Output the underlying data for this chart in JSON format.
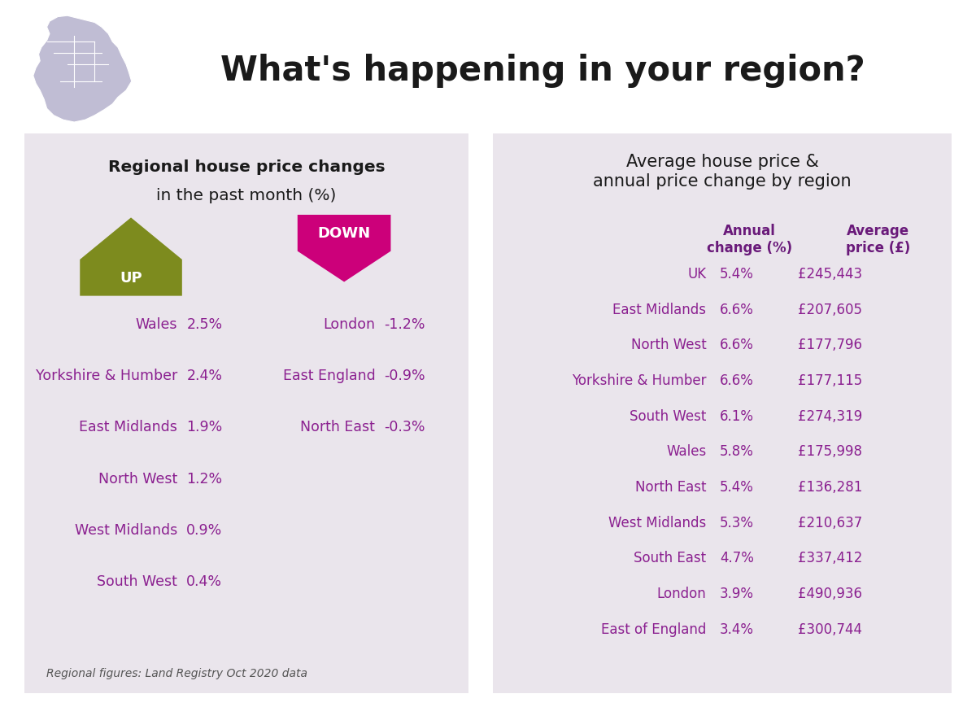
{
  "title": "What's happening in your region?",
  "title_color": "#1a1a1a",
  "bg_color": "#ffffff",
  "panel_bg": "#eae5ec",
  "left_title_bold": "Regional house price changes",
  "left_title_normal": "in the past month (%)",
  "left_title_color": "#1a1a1a",
  "right_title": "Average house price &\nannual price change by region",
  "right_title_color": "#1a1a1a",
  "up_color": "#7d8b1e",
  "down_color": "#cc007a",
  "up_label": "UP",
  "down_label": "DOWN",
  "up_regions": [
    [
      "Wales",
      "2.5%"
    ],
    [
      "Yorkshire & Humber",
      "2.4%"
    ],
    [
      "East Midlands",
      "1.9%"
    ],
    [
      "North West",
      "1.2%"
    ],
    [
      "West Midlands",
      "0.9%"
    ],
    [
      "South West",
      "0.4%"
    ]
  ],
  "down_regions": [
    [
      "London",
      "-1.2%"
    ],
    [
      "East England",
      "-0.9%"
    ],
    [
      "North East",
      "-0.3%"
    ]
  ],
  "right_col_header1": "Annual\nchange (%)",
  "right_col_header2": "Average\nprice (£)",
  "right_col_header_color": "#6a1a7a",
  "right_rows": [
    [
      "UK",
      "5.4%",
      "£245,443"
    ],
    [
      "East Midlands",
      "6.6%",
      "£207,605"
    ],
    [
      "North West",
      "6.6%",
      "£177,796"
    ],
    [
      "Yorkshire & Humber",
      "6.6%",
      "£177,115"
    ],
    [
      "South West",
      "6.1%",
      "£274,319"
    ],
    [
      "Wales",
      "5.8%",
      "£175,998"
    ],
    [
      "North East",
      "5.4%",
      "£136,281"
    ],
    [
      "West Midlands",
      "5.3%",
      "£210,637"
    ],
    [
      "South East",
      "4.7%",
      "£337,412"
    ],
    [
      "London",
      "3.9%",
      "£490,936"
    ],
    [
      "East of England",
      "3.4%",
      "£300,744"
    ]
  ],
  "right_text_color": "#8b2090",
  "footnote": "Regional figures: Land Registry Oct 2020 data",
  "footnote_color": "#555555",
  "region_text_color": "#8b2090"
}
